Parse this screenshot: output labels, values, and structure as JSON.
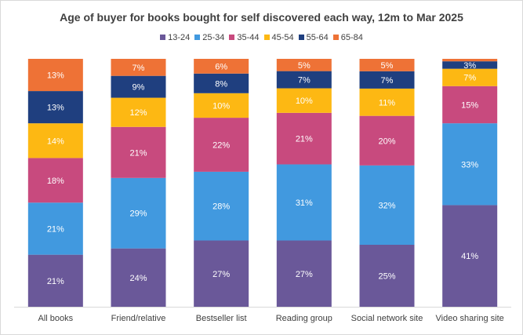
{
  "chart_data": {
    "type": "bar",
    "stacked": true,
    "percent": true,
    "title": "Age of buyer for books bought for self discovered each way, 12m to Mar 2025",
    "xlabel": "",
    "ylabel": "",
    "ylim": [
      0,
      100
    ],
    "grid": false,
    "legend_position": "top",
    "categories": [
      "All books",
      "Friend/relative",
      "Bestseller list",
      "Reading group",
      "Social network site",
      "Video sharing site"
    ],
    "series": [
      {
        "name": "13-24",
        "color": "#6a5899",
        "values": [
          21,
          24,
          27,
          27,
          25,
          41
        ],
        "labels": [
          "21%",
          "24%",
          "27%",
          "27%",
          "25%",
          "41%"
        ]
      },
      {
        "name": "25-34",
        "color": "#4199df",
        "values": [
          21,
          29,
          28,
          31,
          32,
          33
        ],
        "labels": [
          "21%",
          "29%",
          "28%",
          "31%",
          "32%",
          "33%"
        ]
      },
      {
        "name": "35-44",
        "color": "#c84a7e",
        "values": [
          18,
          21,
          22,
          21,
          20,
          15
        ],
        "labels": [
          "18%",
          "21%",
          "22%",
          "21%",
          "20%",
          "15%"
        ]
      },
      {
        "name": "45-54",
        "color": "#fdb813",
        "values": [
          14,
          12,
          10,
          10,
          11,
          7
        ],
        "labels": [
          "14%",
          "12%",
          "10%",
          "10%",
          "11%",
          "7%"
        ]
      },
      {
        "name": "55-64",
        "color": "#1f3f7f",
        "values": [
          13,
          9,
          8,
          7,
          7,
          3
        ],
        "labels": [
          "13%",
          "9%",
          "8%",
          "7%",
          "7%",
          "3%"
        ]
      },
      {
        "name": "65-84",
        "color": "#ee7236",
        "values": [
          13,
          7,
          6,
          5,
          5,
          1
        ],
        "labels": [
          "13%",
          "7%",
          "6%",
          "5%",
          "5%",
          ""
        ]
      }
    ]
  }
}
